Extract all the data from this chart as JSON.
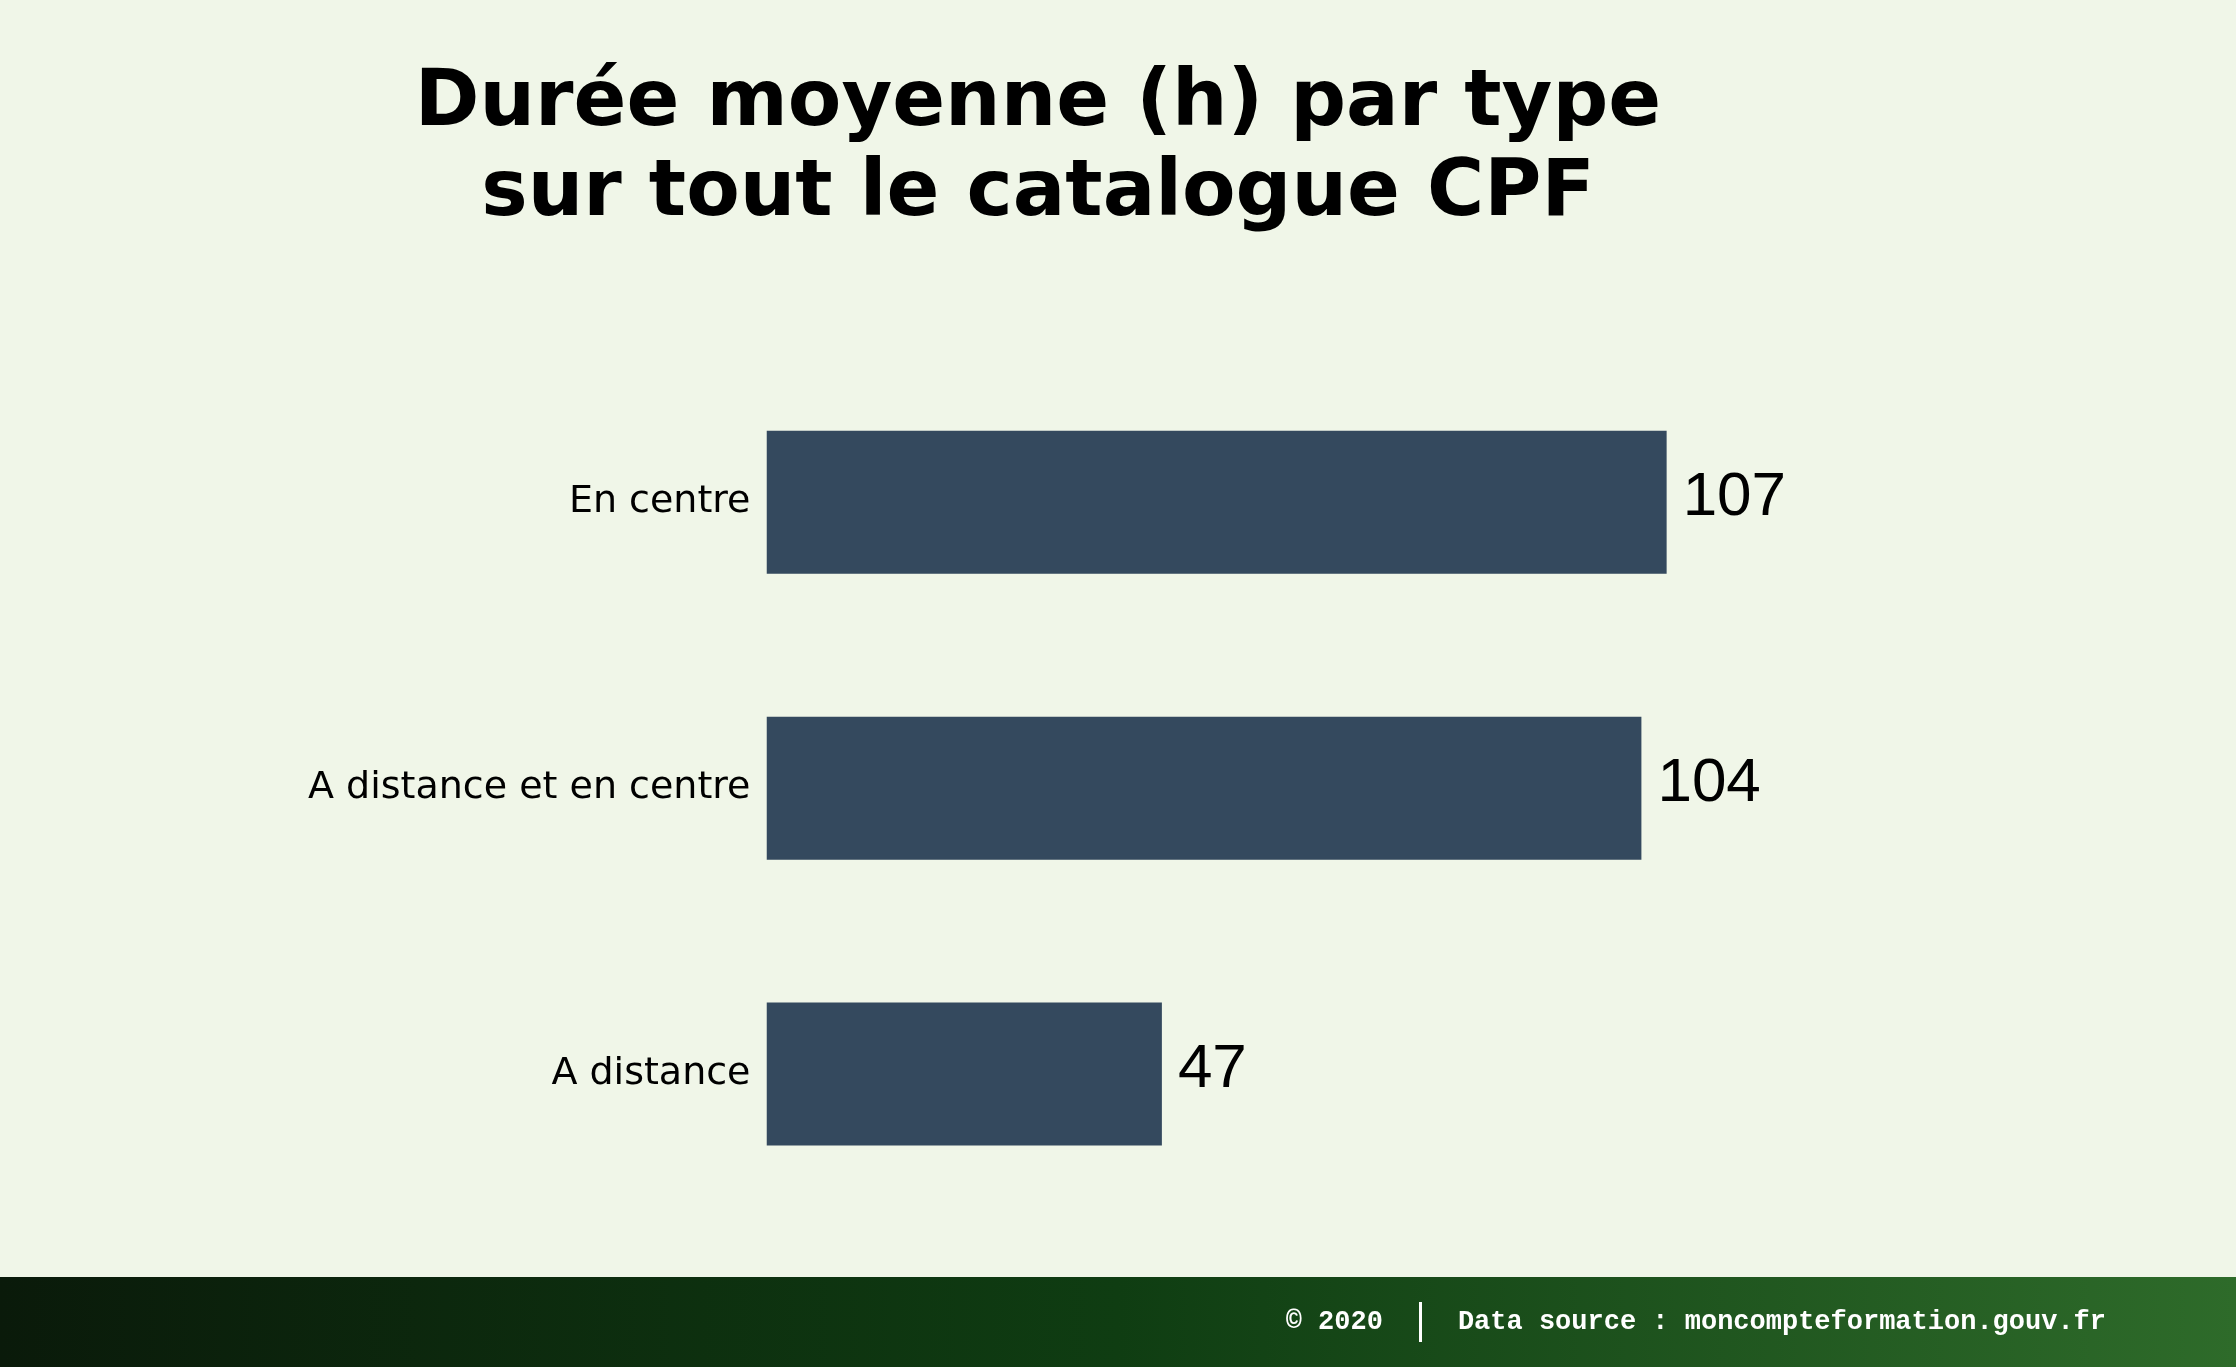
{
  "chart_data": {
    "type": "bar",
    "orientation": "horizontal",
    "title": "Durée moyenne (h) par type\nsur tout le catalogue CPF",
    "categories": [
      "En centre",
      "A distance et en centre",
      "A distance"
    ],
    "values": [
      107,
      104,
      47
    ],
    "color": "#34495e",
    "data_labels": true,
    "grid": false,
    "legend": false,
    "annotations": [
      "© 2020",
      "Data source : moncompteformation.gouv.fr"
    ]
  }
}
